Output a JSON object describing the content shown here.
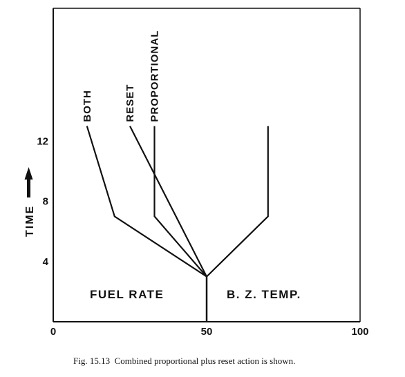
{
  "chart_data": {
    "type": "line",
    "title": "",
    "xlabel": "",
    "ylabel": "TIME",
    "xlim": [
      0,
      100
    ],
    "ylim": [
      0,
      20
    ],
    "x_ticks": [
      "0",
      "50",
      "100"
    ],
    "y_ticks": [
      "4",
      "8",
      "12"
    ],
    "grid": false,
    "region_labels": [
      "FUEL RATE",
      "B. Z. TEMP."
    ],
    "series": [
      {
        "name": "BOTH",
        "points": [
          [
            50,
            0
          ],
          [
            50,
            3
          ],
          [
            20,
            7
          ],
          [
            11,
            13
          ]
        ]
      },
      {
        "name": "RESET",
        "points": [
          [
            50,
            0
          ],
          [
            50,
            3
          ],
          [
            25,
            13
          ]
        ]
      },
      {
        "name": "PROPORTIONAL",
        "points": [
          [
            50,
            0
          ],
          [
            50,
            3
          ],
          [
            33,
            7
          ],
          [
            33,
            13
          ]
        ]
      },
      {
        "name": "",
        "points": [
          [
            50,
            3
          ],
          [
            70,
            7
          ],
          [
            70,
            13
          ]
        ]
      }
    ]
  },
  "caption": "Fig. 15.13  Combined proportional plus reset action is shown."
}
